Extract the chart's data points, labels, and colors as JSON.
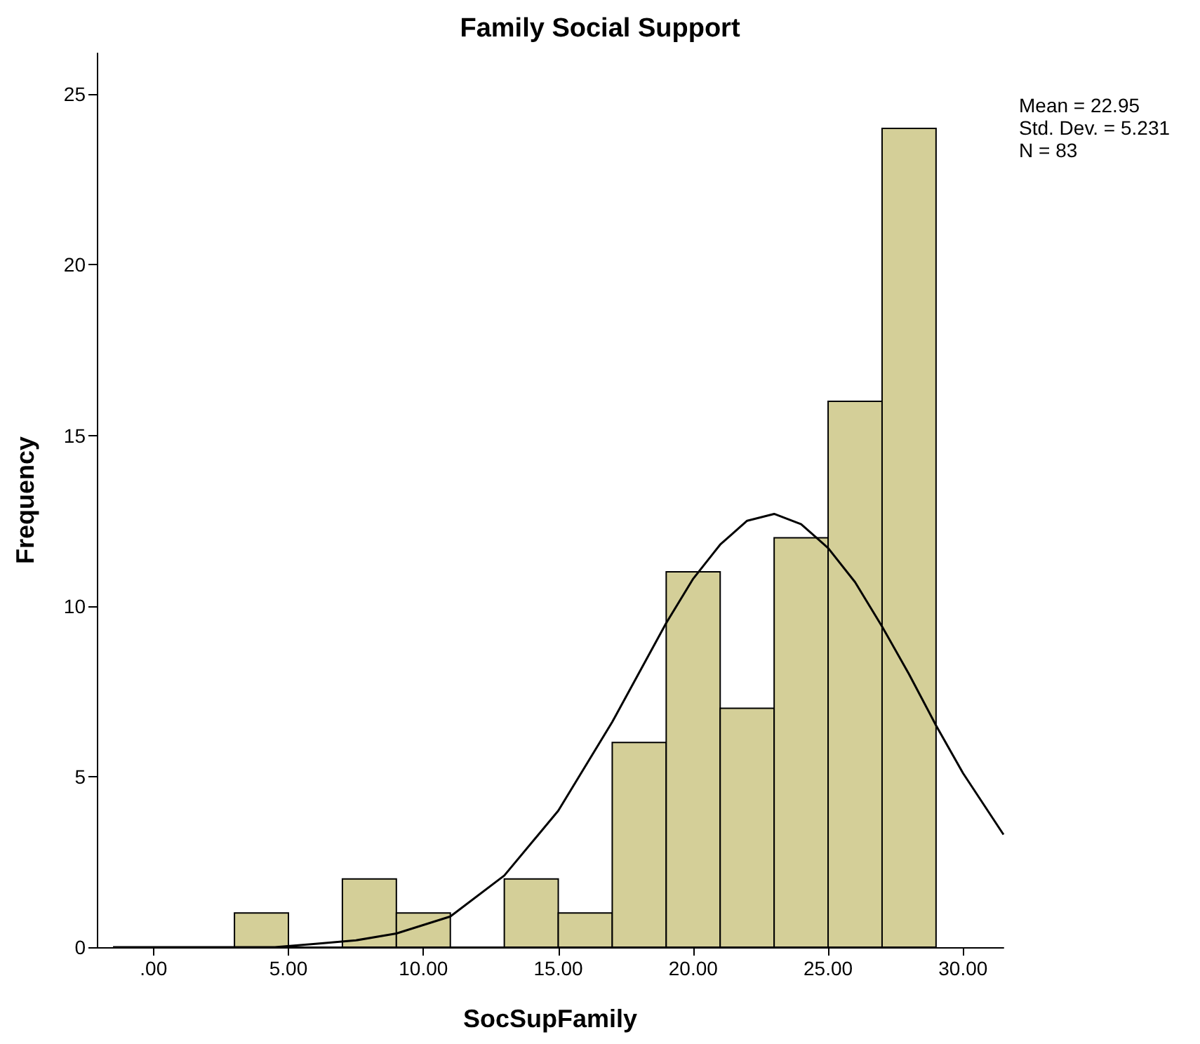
{
  "chart_data": {
    "type": "histogram",
    "title": "Family Social Support",
    "xlabel": "SocSupFamily",
    "ylabel": "Frequency",
    "bins": [
      3,
      5,
      7,
      9,
      11,
      13,
      15,
      17,
      19,
      21,
      23,
      25,
      27,
      29
    ],
    "values": [
      1,
      0,
      2,
      1,
      0,
      2,
      1,
      6,
      11,
      7,
      12,
      16,
      24
    ],
    "color": "#d4cf98",
    "series": [
      {
        "type": "line",
        "color": "#000000",
        "x": [
          -1.5,
          0,
          3,
          4.5,
          6,
          7.5,
          9,
          11,
          13,
          15,
          17,
          19,
          20,
          21,
          22,
          23,
          24,
          25,
          26,
          27,
          28,
          29,
          30,
          31.5
        ],
        "values": [
          0,
          0,
          0,
          0,
          0.1,
          0.2,
          0.4,
          0.9,
          2.1,
          4.0,
          6.6,
          9.5,
          10.8,
          11.8,
          12.5,
          12.7,
          12.4,
          11.7,
          10.7,
          9.4,
          8.0,
          6.5,
          5.1,
          3.3
        ]
      }
    ],
    "xlim": [
      -2.1,
      31.5
    ],
    "xticks": [
      {
        "value": 0,
        "label": ".00"
      },
      {
        "value": 5,
        "label": "5.00"
      },
      {
        "value": 10,
        "label": "10.00"
      },
      {
        "value": 15,
        "label": "15.00"
      },
      {
        "value": 20,
        "label": "20.00"
      },
      {
        "value": 25,
        "label": "25.00"
      },
      {
        "value": 30,
        "label": "30.00"
      }
    ],
    "ylim": [
      0,
      26.2
    ],
    "yticks": [
      0,
      5,
      10,
      15,
      20,
      25
    ],
    "annotations": [
      "Mean = 22.95",
      "Std. Dev. = 5.231",
      "N = 83"
    ],
    "marker": "none",
    "grid": false
  }
}
